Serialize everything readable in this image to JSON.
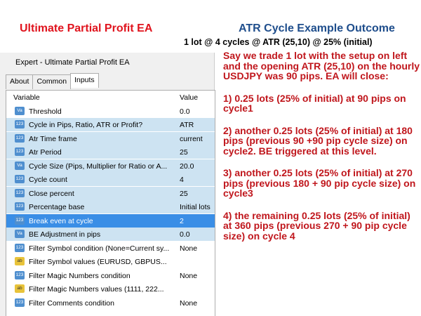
{
  "header": {
    "left_title": "Ultimate Partial Profit EA",
    "right_title": "ATR Cycle Example Outcome",
    "right_subtitle": "1 lot @ 4 cycles @ ATR (25,10) @ 25% (initial)"
  },
  "dialog": {
    "title": "Expert - Ultimate Partial Profit EA",
    "tabs": [
      "About",
      "Common",
      "Inputs"
    ],
    "active_tab": 2
  },
  "table": {
    "headers": [
      "Variable",
      "Value"
    ],
    "rows": [
      {
        "icon": "Va",
        "name": "Threshold",
        "value": "0.0"
      },
      {
        "icon": "123",
        "name": "Cycle in Pips, Ratio, ATR or Profit?",
        "value": "ATR",
        "highlight": true
      },
      {
        "icon": "123",
        "name": "Atr Time frame",
        "value": "current",
        "highlight": true
      },
      {
        "icon": "123",
        "name": "Atr Period",
        "value": "25",
        "highlight": true
      },
      {
        "icon": "Va",
        "name": "Cycle Size (Pips, Multiplier for Ratio or A...",
        "value": "20.0",
        "highlight": true
      },
      {
        "icon": "123",
        "name": "Cycle count",
        "value": "4",
        "highlight": true
      },
      {
        "icon": "123",
        "name": "Close percent",
        "value": "25",
        "highlight": true
      },
      {
        "icon": "123",
        "name": "Percentage base",
        "value": "Initial lots",
        "highlight": true
      },
      {
        "icon": "123",
        "name": "Break even at cycle",
        "value": "2",
        "selected": true
      },
      {
        "icon": "Va",
        "name": "BE Adjustment in pips",
        "value": "0.0",
        "highlight": true
      },
      {
        "icon": "123",
        "name": "Filter Symbol condition (None=Current sy...",
        "value": "None"
      },
      {
        "icon": "ab",
        "name": "Filter Symbol values (EURUSD, GBPUS..."
      },
      {
        "icon": "123",
        "name": "Filter Magic Numbers condition",
        "value": "None"
      },
      {
        "icon": "ab",
        "name": "Filter Magic Numbers values (1111, 222..."
      },
      {
        "icon": "123",
        "name": "Filter Comments condition",
        "value": "None"
      }
    ]
  },
  "description": [
    "Say we trade 1 lot with the setup on left and the opening ATR (25,10) on the hourly USDJPY was 90 pips. EA will close:",
    "1) 0.25 lots (25% of initial) at 90 pips on cycle1",
    "2) another 0.25 lots (25% of initial) at 180 pips (previous 90 +90 pip cycle size) on cycle2. BE triggered at this level.",
    "3) another 0.25 lots (25% of initial) at 270 pips (previous 180 + 90 pip cycle size) on cycle3",
    "4) the remaining 0.25 lots (25% of initial) at 360 pips (previous 270 + 90 pip cycle size) on cycle 4"
  ]
}
